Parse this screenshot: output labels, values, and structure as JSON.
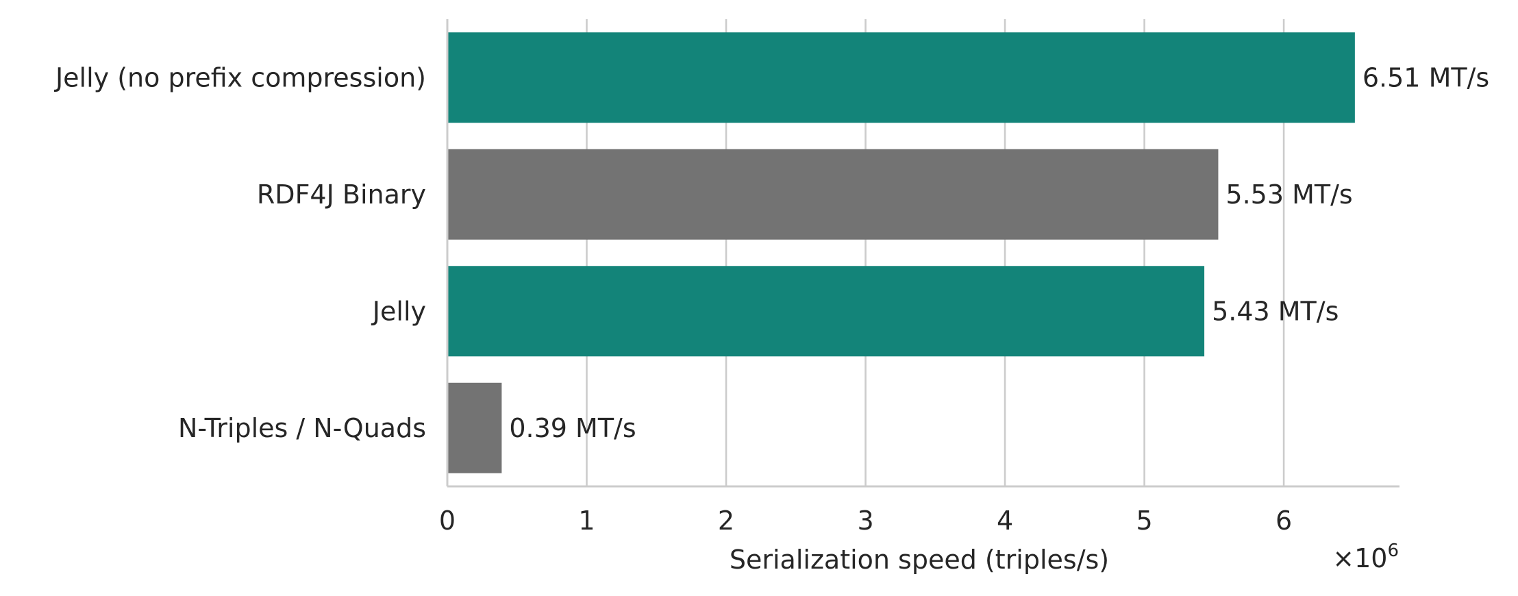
{
  "chart_data": {
    "type": "bar",
    "orientation": "horizontal",
    "categories": [
      "Jelly (no prefix compression)",
      "RDF4J Binary",
      "Jelly",
      "N-Triples / N-Quads"
    ],
    "values": [
      6510000,
      5530000,
      5430000,
      390000
    ],
    "data_labels": [
      "6.51 MT/s",
      "5.53 MT/s",
      "5.43 MT/s",
      "0.39 MT/s"
    ],
    "bar_colors": [
      "#138479",
      "#737373",
      "#138479",
      "#737373"
    ],
    "xlabel": "Serialization speed (triples/s)",
    "x_exponent_label": "×10",
    "x_exponent_power": "6",
    "x_ticks": [
      0,
      1,
      2,
      3,
      4,
      5,
      6
    ],
    "x_tick_labels": [
      "0",
      "1",
      "2",
      "3",
      "4",
      "5",
      "6"
    ],
    "x_tick_scale": 1000000,
    "xlim": [
      0,
      6830000
    ],
    "grid": "vertical",
    "colors": {
      "grid": "#cccccc",
      "axis": "#cccccc",
      "text": "#262626"
    }
  }
}
